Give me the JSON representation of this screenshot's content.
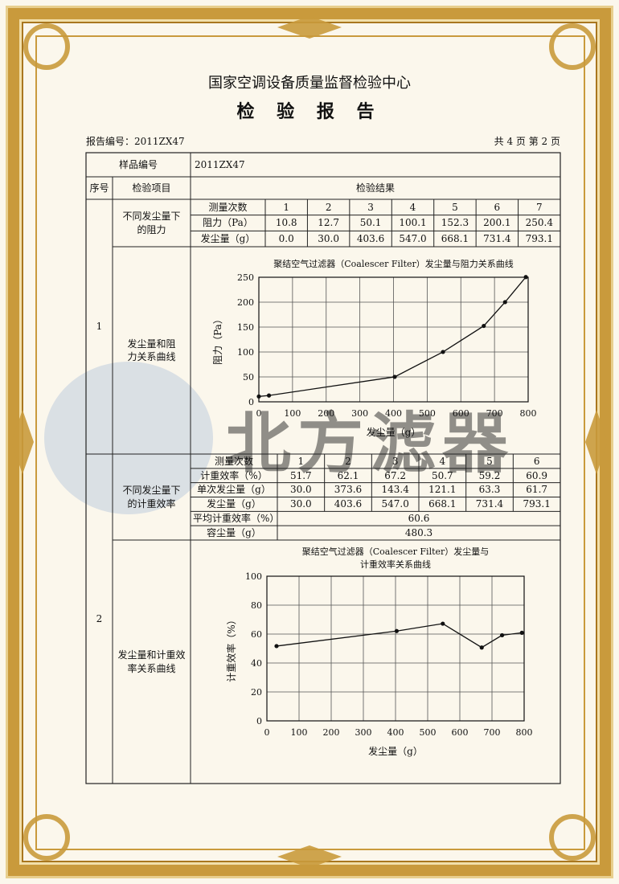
{
  "header": {
    "organization": "国家空调设备质量监督检验中心",
    "title": "检 验 报 告",
    "report_number": "报告编号：2011ZX47",
    "page_info": "共 4 页 第 2 页"
  },
  "watermark": "北方滤器",
  "table": {
    "sample_label": "样品编号",
    "sample_value": "2011ZX47",
    "headers": [
      "序号",
      "检验项目",
      "检验结果"
    ],
    "items": [
      {
        "number": "1",
        "measurement_label": "不同发尘量下的阻力",
        "curve_label": "发尘量和阻力关系曲线",
        "rows": [
          [
            "测量次数",
            "1",
            "2",
            "3",
            "4",
            "5",
            "6",
            "7"
          ],
          [
            "阻力（Pa）",
            "10.8",
            "12.7",
            "50.1",
            "100.1",
            "152.3",
            "200.1",
            "250.4"
          ],
          [
            "发尘量（g）",
            "0.0",
            "30.0",
            "403.6",
            "547.0",
            "668.1",
            "731.4",
            "793.1"
          ]
        ]
      },
      {
        "number": "2",
        "measurement_label": "不同发尘量下的计重效率",
        "curve_label": "发尘量和计重效率关系曲线",
        "rows": [
          [
            "测量次数",
            "1",
            "2",
            "3",
            "4",
            "5",
            "6"
          ],
          [
            "计重效率（%）",
            "51.7",
            "62.1",
            "67.2",
            "50.7",
            "59.2",
            "60.9"
          ],
          [
            "单次发尘量（g）",
            "30.0",
            "373.6",
            "143.4",
            "121.1",
            "63.3",
            "61.7"
          ],
          [
            "发尘量（g）",
            "30.0",
            "403.6",
            "547.0",
            "668.1",
            "731.4",
            "793.1"
          ]
        ],
        "summary": [
          [
            "平均计重效率（%）",
            "60.6"
          ],
          [
            "容尘量（g）",
            "480.3"
          ]
        ]
      }
    ]
  },
  "chart_data": [
    {
      "type": "line",
      "title": "聚结空气过滤器（Coalescer Filter）发尘量与阻力关系曲线",
      "x_label": "发尘量（g）",
      "y_label": "阻力（Pa）",
      "x": [
        0,
        30,
        403.6,
        547,
        668.1,
        731.4,
        793.1
      ],
      "values": [
        10.8,
        12.7,
        50.1,
        100.1,
        152.3,
        200.1,
        250.4
      ],
      "color": "#111111",
      "xlim": [
        0,
        800
      ],
      "xticks": [
        0,
        100,
        200,
        300,
        400,
        500,
        600,
        700,
        800
      ],
      "ylim": [
        0,
        250
      ],
      "yticks": [
        0,
        50,
        100,
        150,
        200,
        250
      ],
      "grid": true
    },
    {
      "type": "line",
      "title": [
        "聚结空气过滤器（Coalescer Filter）发尘量与",
        "计重效率关系曲线"
      ],
      "x_label": "发尘量（g）",
      "y_label": "计重效率（%）",
      "x": [
        30,
        403.6,
        547,
        668.1,
        731.4,
        793.1
      ],
      "values": [
        51.7,
        62.1,
        67.2,
        50.7,
        59.2,
        60.9
      ],
      "color": "#111111",
      "xlim": [
        0,
        800
      ],
      "xticks": [
        0,
        100,
        200,
        300,
        400,
        500,
        600,
        700,
        800
      ],
      "ylim": [
        0,
        100
      ],
      "yticks": [
        0,
        20,
        40,
        60,
        80,
        100
      ],
      "grid": true
    }
  ]
}
